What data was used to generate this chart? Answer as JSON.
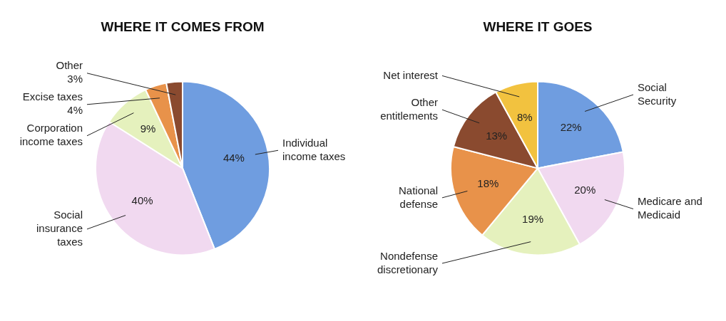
{
  "chart_data": [
    {
      "type": "pie",
      "title": "WHERE IT COMES FROM",
      "categories": [
        "Individual income taxes",
        "Social insurance taxes",
        "Corporation income taxes",
        "Excise taxes",
        "Other"
      ],
      "values": [
        44,
        40,
        9,
        4,
        3
      ],
      "colors": [
        "#6f9de0",
        "#f1d9f0",
        "#e5f1bd",
        "#e8924a",
        "#8a4a2f"
      ],
      "value_labels": [
        "44%",
        "40%",
        "9%",
        "4%",
        "3%"
      ]
    },
    {
      "type": "pie",
      "title": "WHERE IT GOES",
      "categories": [
        "Social Security",
        "Medicare and Medicaid",
        "Nondefense discretionary",
        "National defense",
        "Other entitlements",
        "Net interest"
      ],
      "values": [
        22,
        20,
        19,
        18,
        13,
        8
      ],
      "colors": [
        "#6f9de0",
        "#f1d9f0",
        "#e5f1bd",
        "#e8924a",
        "#8a4a2f",
        "#f2c23f"
      ],
      "value_labels": [
        "22%",
        "20%",
        "19%",
        "18%",
        "13%",
        "8%"
      ]
    }
  ]
}
